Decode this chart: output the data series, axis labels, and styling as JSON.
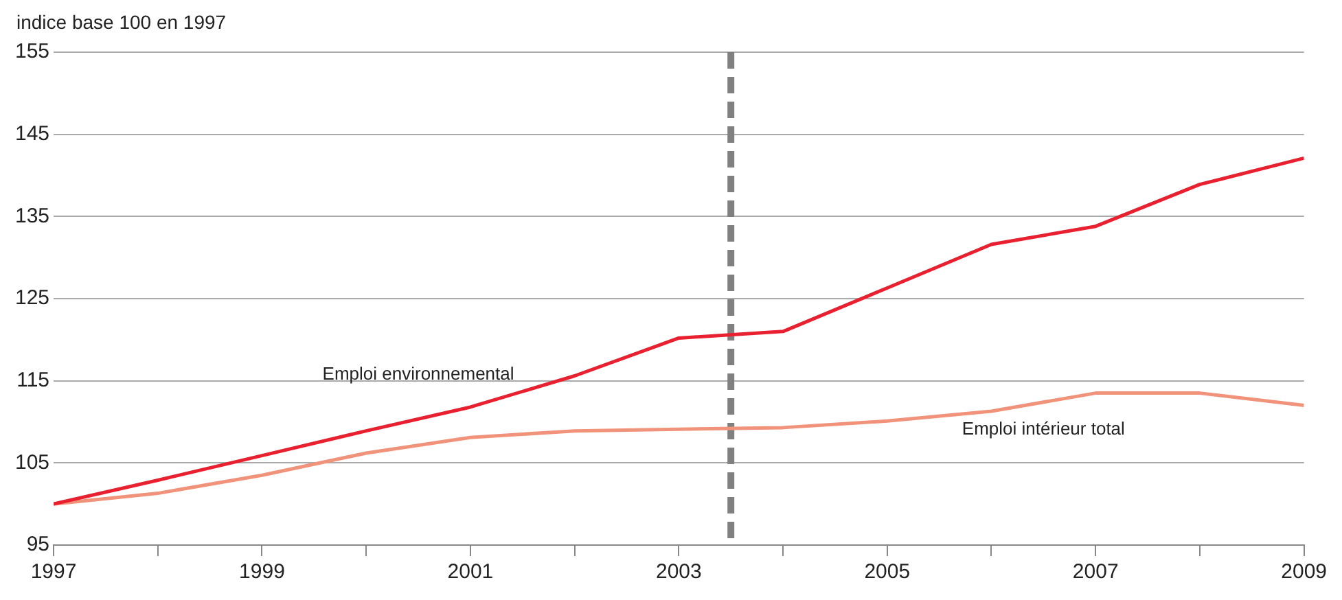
{
  "chart_data": {
    "type": "line",
    "ylabel": "indice base 100 en 1997",
    "x": [
      1997,
      1998,
      1999,
      2000,
      2001,
      2002,
      2003,
      2004,
      2005,
      2006,
      2007,
      2008,
      2009
    ],
    "series": [
      {
        "name": "Emploi environnemental",
        "color": "#e8202f",
        "values": [
          100,
          102.9,
          105.9,
          108.9,
          111.8,
          115.6,
          120.2,
          121,
          126.3,
          131.6,
          133.8,
          138.9,
          142.1
        ]
      },
      {
        "name": "Emploi intérieur total",
        "color": "#f0937a",
        "values": [
          100,
          101.3,
          103.5,
          106.2,
          108.1,
          108.9,
          109.1,
          109.3,
          110.1,
          111.3,
          113.5,
          113.5,
          112
        ]
      }
    ],
    "xlim": [
      1997,
      2009
    ],
    "xticks": [
      1997,
      {
        "value": 1998,
        "label": null
      },
      1999,
      {
        "value": 2000,
        "label": null
      },
      2001,
      {
        "value": 2002,
        "label": null
      },
      2003,
      {
        "value": 2004,
        "label": null
      },
      2005,
      {
        "value": 2006,
        "label": null
      },
      2007,
      {
        "value": 2008,
        "label": null
      },
      2009
    ],
    "ylim": [
      95,
      155
    ],
    "yticks": [
      95,
      105,
      115,
      125,
      135,
      145,
      155
    ],
    "grid": "y",
    "legend": false,
    "marker": "none",
    "line_style": "solid",
    "ref_lines": [
      {
        "axis": "x",
        "value": 2003.5,
        "color": "#808080",
        "line_style": "dashed"
      }
    ]
  }
}
